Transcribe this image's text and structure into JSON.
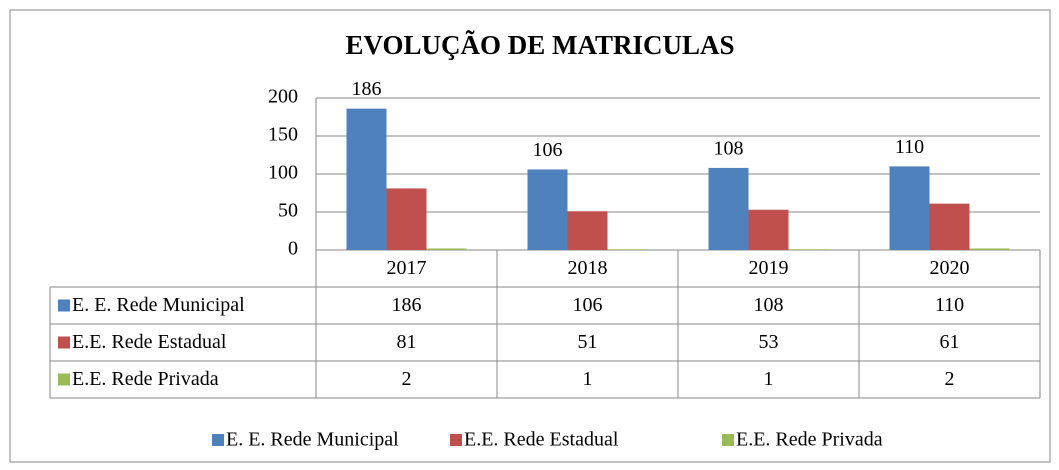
{
  "chart_data": {
    "type": "bar",
    "title": "EVOLUÇÃO DE MATRICULAS",
    "categories": [
      "2017",
      "2018",
      "2019",
      "2020"
    ],
    "series": [
      {
        "name": "E. E. Rede Municipal",
        "color": "#4f81bd",
        "values": [
          186,
          106,
          108,
          110
        ]
      },
      {
        "name": "E.E. Rede Estadual",
        "color": "#c0504d",
        "values": [
          81,
          51,
          53,
          61
        ]
      },
      {
        "name": "E.E. Rede Privada",
        "color": "#9bbb59",
        "values": [
          2,
          1,
          1,
          2
        ]
      }
    ],
    "ylim": [
      0,
      200
    ],
    "yticks": [
      0,
      50,
      100,
      150,
      200
    ],
    "grid": true,
    "legend": "bottom"
  }
}
